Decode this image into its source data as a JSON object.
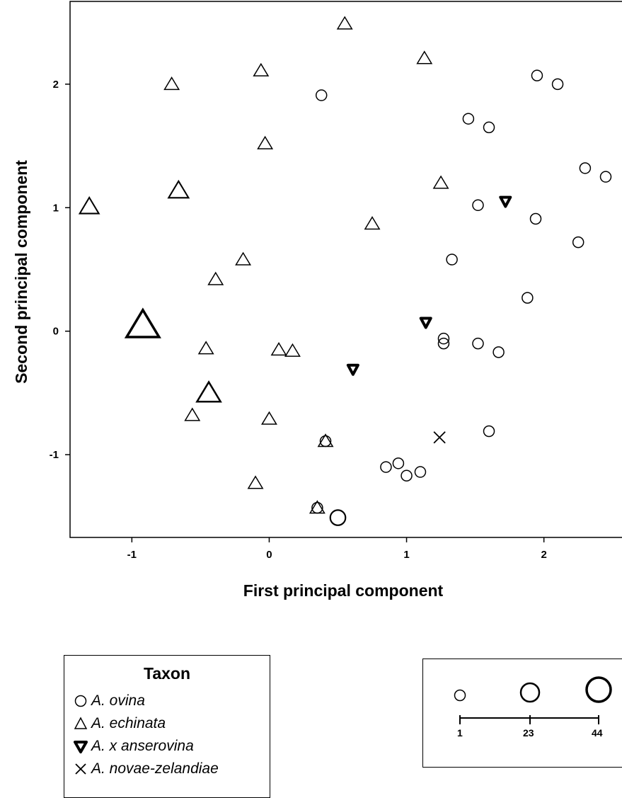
{
  "chart_data": {
    "type": "scatter",
    "xlabel": "First principal component",
    "ylabel": "Second principal component",
    "xlim": [
      -1.45,
      2.62
    ],
    "ylim": [
      -1.67,
      2.67
    ],
    "xticks": [
      -1,
      0,
      1,
      2
    ],
    "yticks": [
      -1,
      0,
      1,
      2
    ],
    "grid": false,
    "marker_size_meaning": "number of samples (1 to 44)",
    "series": [
      {
        "name": "A. ovina",
        "marker": "circle",
        "points": [
          {
            "x": 0.38,
            "y": 1.91,
            "n": 1
          },
          {
            "x": 1.45,
            "y": 1.72,
            "n": 1
          },
          {
            "x": 1.6,
            "y": 1.65,
            "n": 1
          },
          {
            "x": 1.95,
            "y": 2.07,
            "n": 1
          },
          {
            "x": 2.1,
            "y": 2.0,
            "n": 1
          },
          {
            "x": 2.3,
            "y": 1.32,
            "n": 1
          },
          {
            "x": 2.45,
            "y": 1.25,
            "n": 1
          },
          {
            "x": 1.52,
            "y": 1.02,
            "n": 1
          },
          {
            "x": 1.94,
            "y": 0.91,
            "n": 1
          },
          {
            "x": 2.25,
            "y": 0.72,
            "n": 1
          },
          {
            "x": 1.33,
            "y": 0.58,
            "n": 1
          },
          {
            "x": 1.88,
            "y": 0.27,
            "n": 1
          },
          {
            "x": 1.27,
            "y": -0.06,
            "n": 1
          },
          {
            "x": 1.27,
            "y": -0.1,
            "n": 1
          },
          {
            "x": 1.52,
            "y": -0.1,
            "n": 1
          },
          {
            "x": 1.67,
            "y": -0.17,
            "n": 1
          },
          {
            "x": 1.6,
            "y": -0.81,
            "n": 1
          },
          {
            "x": 0.41,
            "y": -0.89,
            "n": 1
          },
          {
            "x": 0.85,
            "y": -1.1,
            "n": 1
          },
          {
            "x": 0.94,
            "y": -1.07,
            "n": 1
          },
          {
            "x": 1.0,
            "y": -1.17,
            "n": 1
          },
          {
            "x": 1.1,
            "y": -1.14,
            "n": 1
          },
          {
            "x": 0.35,
            "y": -1.43,
            "n": 1
          },
          {
            "x": 0.5,
            "y": -1.51,
            "n": 6
          }
        ]
      },
      {
        "name": "A. echinata",
        "marker": "triangle",
        "points": [
          {
            "x": 0.55,
            "y": 2.49,
            "n": 1
          },
          {
            "x": 1.13,
            "y": 2.21,
            "n": 1
          },
          {
            "x": -0.06,
            "y": 2.11,
            "n": 1
          },
          {
            "x": -0.71,
            "y": 2.0,
            "n": 1
          },
          {
            "x": -0.03,
            "y": 1.52,
            "n": 1
          },
          {
            "x": -1.31,
            "y": 1.01,
            "n": 4
          },
          {
            "x": -0.66,
            "y": 1.14,
            "n": 5
          },
          {
            "x": 1.25,
            "y": 1.2,
            "n": 1
          },
          {
            "x": 0.75,
            "y": 0.87,
            "n": 1
          },
          {
            "x": -0.19,
            "y": 0.58,
            "n": 1
          },
          {
            "x": -0.39,
            "y": 0.42,
            "n": 1
          },
          {
            "x": -0.92,
            "y": 0.05,
            "n": 44
          },
          {
            "x": -0.46,
            "y": -0.14,
            "n": 1
          },
          {
            "x": 0.07,
            "y": -0.15,
            "n": 1
          },
          {
            "x": 0.17,
            "y": -0.16,
            "n": 1
          },
          {
            "x": -0.44,
            "y": -0.5,
            "n": 12
          },
          {
            "x": -0.56,
            "y": -0.68,
            "n": 1
          },
          {
            "x": 0.0,
            "y": -0.71,
            "n": 1
          },
          {
            "x": 0.41,
            "y": -0.89,
            "n": 1
          },
          {
            "x": -0.1,
            "y": -1.23,
            "n": 1
          },
          {
            "x": 0.35,
            "y": -1.43,
            "n": 1
          }
        ]
      },
      {
        "name": "A. x anserovina",
        "marker": "triangle-down-filled",
        "points": [
          {
            "x": 1.72,
            "y": 1.05,
            "n": 1
          },
          {
            "x": 1.14,
            "y": 0.07,
            "n": 1
          },
          {
            "x": 0.61,
            "y": -0.31,
            "n": 1
          }
        ]
      },
      {
        "name": "A. novae-zelandiae",
        "marker": "x",
        "points": [
          {
            "x": 1.24,
            "y": -0.86,
            "n": 1
          }
        ]
      }
    ]
  },
  "legend": {
    "title": "Taxon",
    "items": [
      "A. ovina",
      "A. echinata",
      "A. x anserovina",
      "A. novae-zelandiae"
    ]
  },
  "size_legend": {
    "values": [
      "1",
      "23",
      "44"
    ]
  }
}
